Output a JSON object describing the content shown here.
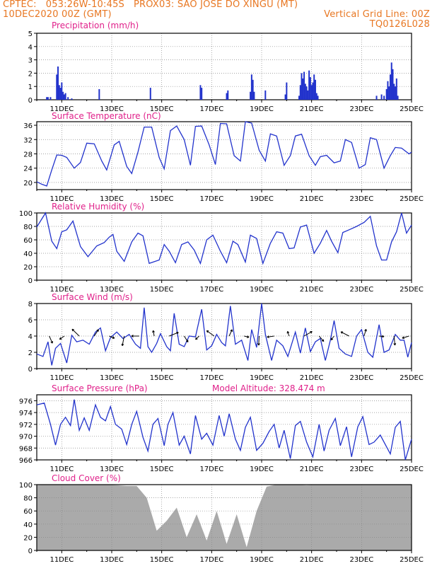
{
  "header": {
    "line1_left": "CPTEC:   053:26W-10:45S   PROX03: SAO JOSE DO XINGU (MT)",
    "line2_left": "10DEC2020 00Z (GMT)",
    "line2_right": "Vertical Grid Line: 00Z",
    "line3_right": "TQ0126L028"
  },
  "colors": {
    "header": "#e87722",
    "title": "#e0208a",
    "line": "#2233cc",
    "cloud": "#aaaaaa"
  },
  "x_tick_labels": [
    "11DEC",
    "13DEC",
    "15DEC",
    "17DEC",
    "19DEC",
    "21DEC",
    "23DEC",
    "25DEC"
  ],
  "panels": {
    "precip": {
      "title": "Precipitation (mm/h)",
      "y_ticks": [
        "0",
        "1",
        "2",
        "3",
        "4",
        "5"
      ]
    },
    "temp": {
      "title": "Surface Temperature (nC)",
      "y_ticks": [
        "20",
        "24",
        "28",
        "32",
        "36"
      ]
    },
    "rh": {
      "title": "Relative Humidity (%)",
      "y_ticks": [
        "0",
        "20",
        "40",
        "60",
        "80",
        "100"
      ]
    },
    "wind": {
      "title": "Surface Wind (m/s)",
      "y_ticks": [
        "0",
        "2",
        "4",
        "6",
        "8"
      ]
    },
    "pressure": {
      "title": "Surface Pressure (hPa)",
      "subtitle": "Model Altitude: 328.474 m",
      "y_ticks": [
        "966",
        "968",
        "970",
        "972",
        "974",
        "976"
      ]
    },
    "cloud": {
      "title": "Cloud Cover (%)",
      "y_ticks": [
        "0",
        "20",
        "40",
        "60",
        "80",
        "100"
      ]
    }
  },
  "chart_data": [
    {
      "type": "bar",
      "title": "Precipitation (mm/h)",
      "ylim": [
        0,
        5
      ],
      "x_unit": "days since 10DEC2020 00Z",
      "x": [
        0.4,
        0.45,
        0.55,
        0.8,
        0.85,
        0.9,
        0.95,
        1.0,
        1.05,
        1.1,
        1.15,
        1.25,
        1.4,
        2.5,
        4.55,
        6.55,
        6.6,
        7.6,
        7.65,
        8.55,
        8.6,
        8.65,
        8.7,
        9.15,
        9.95,
        10.0,
        10.5,
        10.55,
        10.6,
        10.65,
        10.7,
        10.75,
        10.8,
        10.85,
        10.9,
        10.95,
        11.0,
        11.05,
        11.1,
        11.15,
        11.2,
        11.25,
        13.6,
        13.8,
        13.9,
        14.0,
        14.05,
        14.1,
        14.15,
        14.2,
        14.25,
        14.3,
        14.35,
        14.4,
        14.45
      ],
      "values": [
        0.2,
        0.2,
        0.2,
        1.9,
        2.5,
        1.1,
        0.9,
        1.3,
        0.6,
        0.4,
        0.5,
        0.2,
        0.1,
        0.8,
        0.9,
        1.1,
        0.9,
        0.5,
        0.7,
        0.6,
        1.9,
        1.5,
        0.6,
        0.7,
        0.4,
        1.3,
        0.3,
        1.1,
        2.0,
        1.6,
        2.1,
        1.2,
        1.0,
        0.7,
        2.2,
        1.7,
        1.1,
        1.3,
        1.9,
        1.5,
        0.5,
        0.3,
        0.3,
        0.4,
        0.3,
        0.8,
        1.4,
        1.0,
        1.9,
        2.8,
        2.3,
        1.2,
        1.0,
        1.6,
        0.3
      ]
    },
    {
      "type": "line",
      "title": "Surface Temperature (nC)",
      "ylim": [
        18,
        37
      ],
      "x_unit": "days since 10DEC2020 00Z",
      "x": [
        0,
        0.2,
        0.4,
        0.6,
        0.8,
        1,
        1.2,
        1.5,
        1.75,
        2.0,
        2.3,
        2.6,
        2.8,
        3.1,
        3.3,
        3.6,
        3.8,
        4.05,
        4.3,
        4.6,
        4.9,
        5.1,
        5.35,
        5.6,
        5.9,
        6.15,
        6.35,
        6.6,
        6.9,
        7.15,
        7.35,
        7.6,
        7.9,
        8.15,
        8.35,
        8.6,
        8.9,
        9.15,
        9.35,
        9.6,
        9.9,
        10.15,
        10.35,
        10.6,
        10.9,
        11.15,
        11.35,
        11.6,
        11.9,
        12.15,
        12.35,
        12.6,
        12.9,
        13.15,
        13.35,
        13.6,
        13.9,
        14.15,
        14.35,
        14.6,
        14.9,
        15
      ],
      "values": [
        20.2,
        19.5,
        19.0,
        23.5,
        27.7,
        27.6,
        27.0,
        24.0,
        25.6,
        31.0,
        30.8,
        26.0,
        23.5,
        30.5,
        31.5,
        24.5,
        22.5,
        28.5,
        35.5,
        35.5,
        27.0,
        23.8,
        34.5,
        35.8,
        32.0,
        24.8,
        35.7,
        35.8,
        30.5,
        25.0,
        36.5,
        36.4,
        27.5,
        26.0,
        37.0,
        36.6,
        29.0,
        26.0,
        33.6,
        33.0,
        24.8,
        27.5,
        33.0,
        33.5,
        27.5,
        24.8,
        27.2,
        27.6,
        25.5,
        26.0,
        32.0,
        31.2,
        24.0,
        25.0,
        32.5,
        32.0,
        24.0,
        27.5,
        29.8,
        29.6,
        28.0,
        28.5
      ]
    },
    {
      "type": "line",
      "title": "Relative Humidity (%)",
      "ylim": [
        0,
        100
      ],
      "x_unit": "days since 10DEC2020 00Z",
      "x": [
        0,
        0.35,
        0.6,
        0.8,
        1.0,
        1.2,
        1.45,
        1.75,
        2.05,
        2.4,
        2.7,
        2.9,
        3.05,
        3.2,
        3.5,
        3.8,
        4.05,
        4.25,
        4.5,
        4.9,
        5.1,
        5.3,
        5.55,
        5.8,
        6.05,
        6.3,
        6.55,
        6.8,
        7.05,
        7.35,
        7.6,
        7.85,
        8.05,
        8.35,
        8.55,
        8.8,
        9.05,
        9.35,
        9.6,
        9.85,
        10.1,
        10.3,
        10.55,
        10.8,
        11.1,
        11.35,
        11.6,
        11.8,
        12.05,
        12.25,
        12.5,
        12.8,
        13.1,
        13.35,
        13.6,
        13.8,
        14.0,
        14.2,
        14.4,
        14.6,
        14.8,
        15
      ],
      "values": [
        79,
        100,
        58,
        47,
        72,
        75,
        88,
        50,
        35,
        51,
        56,
        64,
        68,
        43,
        28,
        57,
        70,
        66,
        25,
        30,
        53,
        43,
        26,
        53,
        57,
        45,
        25,
        60,
        67,
        43,
        26,
        58,
        53,
        27,
        67,
        62,
        25,
        55,
        72,
        70,
        47,
        48,
        79,
        82,
        40,
        55,
        74,
        58,
        41,
        71,
        75,
        80,
        86,
        95,
        51,
        30,
        30,
        57,
        72,
        100,
        70,
        82
      ]
    },
    {
      "type": "line",
      "title": "Surface Wind (m/s)",
      "ylim": [
        0,
        8
      ],
      "x_unit": "days since 10DEC2020 00Z",
      "x": [
        0,
        0.25,
        0.45,
        0.6,
        0.75,
        0.95,
        1.2,
        1.4,
        1.6,
        1.85,
        2.1,
        2.35,
        2.55,
        2.75,
        2.95,
        3.2,
        3.45,
        3.7,
        3.95,
        4.15,
        4.3,
        4.45,
        4.6,
        4.8,
        4.95,
        5.2,
        5.35,
        5.5,
        5.7,
        5.9,
        6.1,
        6.35,
        6.6,
        6.8,
        7.0,
        7.2,
        7.4,
        7.55,
        7.75,
        7.95,
        8.2,
        8.45,
        8.6,
        8.8,
        9.0,
        9.15,
        9.4,
        9.6,
        9.85,
        10.05,
        10.35,
        10.55,
        10.75,
        10.95,
        11.15,
        11.35,
        11.55,
        11.75,
        11.9,
        12.1,
        12.35,
        12.6,
        12.8,
        13.0,
        13.25,
        13.45,
        13.7,
        13.9,
        14.1,
        14.35,
        14.55,
        14.7,
        14.85,
        15
      ],
      "values": [
        1.8,
        1.5,
        3.3,
        0.4,
        2.5,
        3.1,
        0.7,
        4.1,
        3.3,
        3.5,
        3.0,
        4.5,
        5.0,
        2.2,
        3.8,
        4.5,
        3.7,
        4.2,
        3.0,
        2.5,
        7.5,
        2.7,
        2.0,
        3.1,
        4.3,
        2.7,
        2.2,
        6.8,
        3.0,
        2.7,
        4.0,
        3.9,
        7.3,
        2.3,
        2.8,
        4.2,
        3.2,
        2.8,
        7.7,
        3.0,
        3.5,
        1.0,
        4.8,
        2.6,
        8.0,
        4.2,
        1.0,
        3.5,
        2.8,
        1.5,
        4.5,
        1.9,
        5.0,
        2.1,
        3.3,
        3.7,
        1.0,
        3.5,
        5.9,
        2.5,
        1.8,
        1.5,
        4.0,
        4.8,
        2.0,
        1.4,
        5.4,
        2.0,
        2.3,
        4.2,
        3.5,
        3.5,
        1.4,
        3.2
      ]
    },
    {
      "type": "line",
      "title": "Surface Pressure (hPa)",
      "ylim": [
        966,
        977
      ],
      "x_unit": "days since 10DEC2020 00Z",
      "x": [
        0,
        0.3,
        0.55,
        0.75,
        0.95,
        1.15,
        1.35,
        1.5,
        1.7,
        1.9,
        2.1,
        2.35,
        2.55,
        2.75,
        2.95,
        3.15,
        3.4,
        3.6,
        3.8,
        4.0,
        4.25,
        4.45,
        4.65,
        4.85,
        5.1,
        5.25,
        5.45,
        5.7,
        5.9,
        6.15,
        6.35,
        6.6,
        6.8,
        7.05,
        7.3,
        7.5,
        7.7,
        7.95,
        8.15,
        8.35,
        8.55,
        8.8,
        9.05,
        9.3,
        9.5,
        9.7,
        9.9,
        10.15,
        10.35,
        10.55,
        10.8,
        11.05,
        11.3,
        11.5,
        11.7,
        11.95,
        12.15,
        12.4,
        12.6,
        12.85,
        13.05,
        13.3,
        13.5,
        13.75,
        13.95,
        14.15,
        14.35,
        14.55,
        14.75,
        15
      ],
      "values": [
        975.3,
        975.6,
        972,
        968.5,
        972,
        973.2,
        971.8,
        976.2,
        971,
        973.1,
        971,
        975.3,
        973.2,
        972.6,
        975,
        972,
        971.2,
        968.6,
        972,
        974.2,
        969.8,
        967.5,
        972,
        973,
        968.4,
        972,
        974,
        968.5,
        970,
        967,
        973.5,
        969.5,
        970.5,
        968.5,
        973.5,
        970,
        973.8,
        969.5,
        967.6,
        971.5,
        973.2,
        967.6,
        968.8,
        970.8,
        972,
        968,
        971,
        966.2,
        971.8,
        972.5,
        969,
        966.5,
        972,
        967.5,
        971,
        973,
        968.4,
        971.6,
        966.5,
        971.6,
        973.3,
        968.6,
        969,
        970.2,
        968.6,
        967,
        971.5,
        972.5,
        966,
        969.5
      ]
    },
    {
      "type": "area",
      "title": "Cloud Cover (%)",
      "ylim": [
        0,
        100
      ],
      "x_unit": "days since 10DEC2020 00Z",
      "x": [
        0,
        0.4,
        0.8,
        1.2,
        1.6,
        2.0,
        2.4,
        2.8,
        3.2,
        3.6,
        4.0,
        4.4,
        4.8,
        5.2,
        5.6,
        6.0,
        6.4,
        6.8,
        7.2,
        7.6,
        8.0,
        8.4,
        8.8,
        9.2,
        9.6,
        10.0,
        10.4,
        10.8,
        11.2,
        11.6,
        12.0,
        12.4,
        12.8,
        13.2,
        13.6,
        14.0,
        14.4,
        14.8,
        15
      ],
      "values": [
        99,
        100,
        100,
        100,
        100,
        100,
        100,
        100,
        99,
        98,
        98,
        80,
        30,
        45,
        65,
        20,
        55,
        15,
        60,
        10,
        55,
        5,
        60,
        97,
        100,
        100,
        100,
        99,
        100,
        100,
        100,
        100,
        100,
        100,
        100,
        100,
        100,
        100,
        100
      ]
    }
  ]
}
